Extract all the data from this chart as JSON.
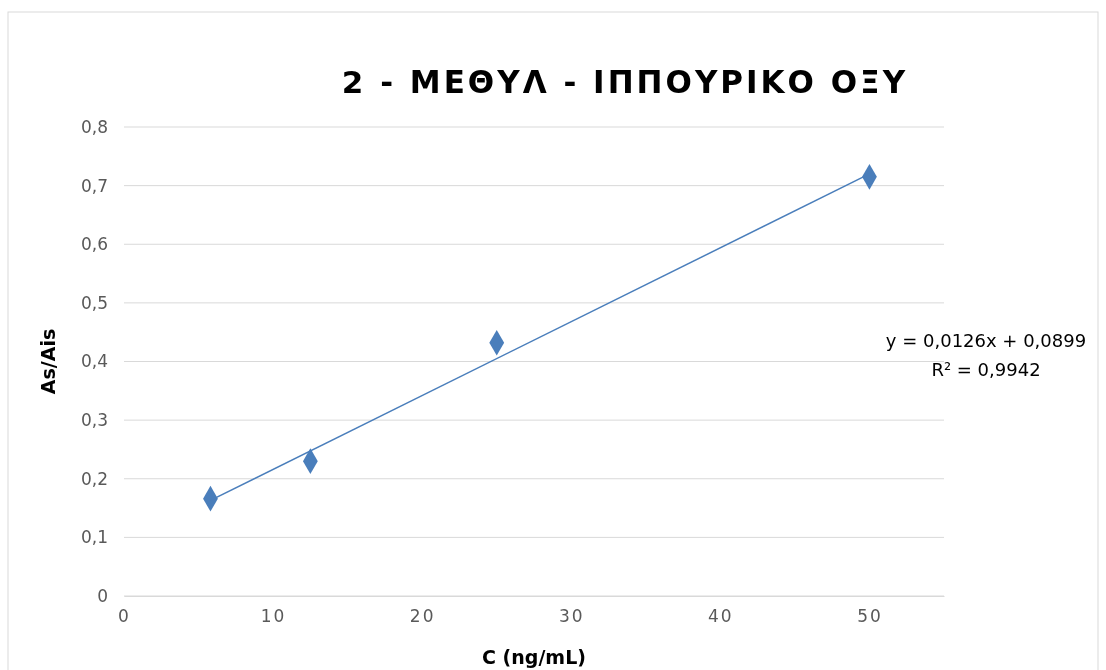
{
  "chart_data": {
    "type": "scatter",
    "title": "2 - ΜΕΘΥΛ - ΙΠΠΟΥΡΙΚΟ ΟΞΥ",
    "xlabel": "C (ng/mL)",
    "ylabel": "As/Ais",
    "series": [
      {
        "color": "#4a7ebb",
        "x": [
          5.8,
          12.5,
          25,
          50
        ],
        "values": [
          0.166,
          0.23,
          0.432,
          0.715
        ],
        "marker": "diamond"
      },
      {
        "type": "line",
        "color": "#4a7ebb",
        "x": [
          5.8,
          50
        ],
        "values": [
          0.163,
          0.72
        ],
        "marker": "none",
        "line_style": "solid"
      }
    ],
    "annotations": [
      "y = 0,0126x + 0,0899",
      "R² = 0,9942"
    ],
    "xlim": [
      0,
      55
    ],
    "xticks": [
      0,
      10,
      20,
      30,
      40,
      50
    ],
    "ylim": [
      0,
      0.8
    ],
    "yticks": [
      {
        "value": 0,
        "label": "0"
      },
      {
        "value": 0.1,
        "label": "0,1"
      },
      {
        "value": 0.2,
        "label": "0,2"
      },
      {
        "value": 0.3,
        "label": "0,3"
      },
      {
        "value": 0.4,
        "label": "0,4"
      },
      {
        "value": 0.5,
        "label": "0,5"
      },
      {
        "value": 0.6,
        "label": "0,6"
      },
      {
        "value": 0.7,
        "label": "0,7"
      },
      {
        "value": 0.8,
        "label": "0,8"
      }
    ],
    "grid": "y"
  }
}
